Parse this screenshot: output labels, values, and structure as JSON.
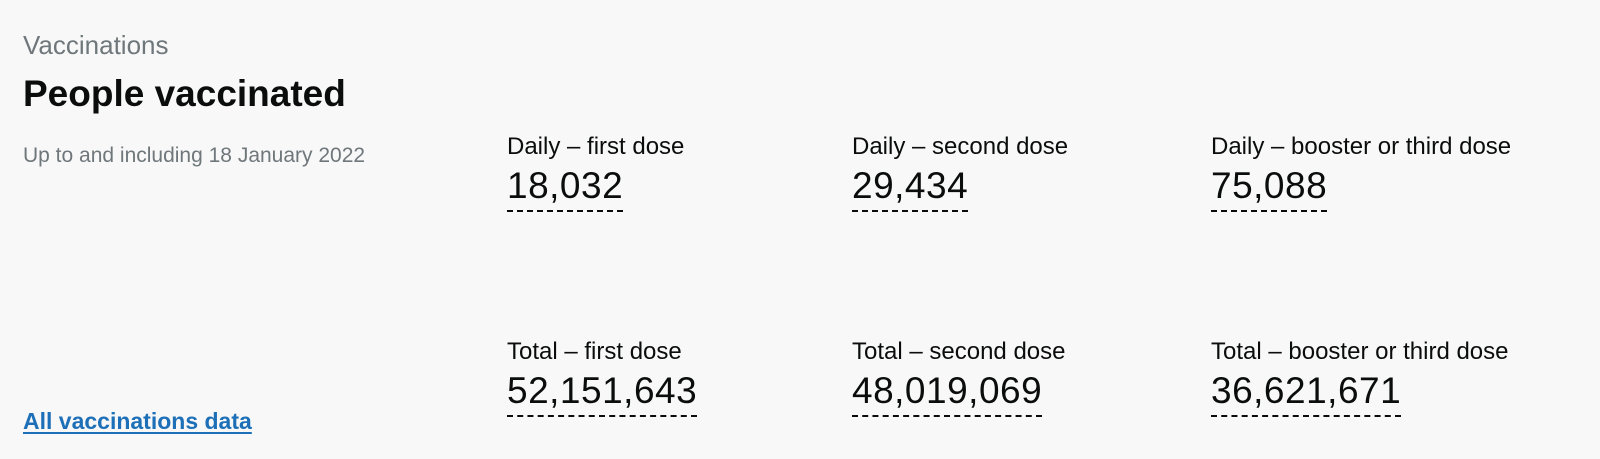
{
  "card": {
    "caption": "Vaccinations",
    "title": "People vaccinated",
    "date_note": "Up to and including 18 January 2022",
    "link_text": "All vaccinations data",
    "link_color": "#1d70b8"
  },
  "metrics": [
    {
      "label": "Daily – first dose",
      "value": "18,032"
    },
    {
      "label": "Daily – second dose",
      "value": "29,434"
    },
    {
      "label": "Daily – booster or third dose",
      "value": "75,088"
    },
    {
      "label": "Total – first dose",
      "value": "52,151,643"
    },
    {
      "label": "Total – second dose",
      "value": "48,019,069"
    },
    {
      "label": "Total – booster or third dose",
      "value": "36,621,671"
    }
  ]
}
